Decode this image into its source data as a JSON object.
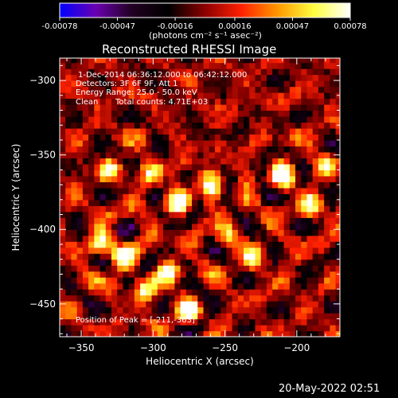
{
  "chart_data": {
    "type": "heatmap",
    "title": "Reconstructed RHESSI Image",
    "xlabel": "Heliocentric X (arcsec)",
    "ylabel": "Heliocentric Y (arcsec)",
    "xlim": [
      -365,
      -170
    ],
    "ylim": [
      -472,
      -285
    ],
    "x_ticks": [
      -350,
      -300,
      -250,
      -200
    ],
    "y_ticks": [
      -300,
      -350,
      -400,
      -450
    ],
    "colorbar": {
      "range": [
        -0.00078,
        0.00078
      ],
      "ticks": [
        "-0.00078",
        "-0.00047",
        "-0.00016",
        "0.00016",
        "0.00047",
        "0.00078"
      ],
      "unit_label": "(photons cm⁻² s⁻¹ asec⁻²)",
      "colormap": [
        "#0000ff",
        "#6a00b0",
        "#200020",
        "#000000",
        "#8c0000",
        "#ff2000",
        "#ff9800",
        "#ffff40",
        "#ffffff"
      ]
    },
    "annotations": [
      "1-Dec-2014 06:36:12.000 to 06:42:12.000",
      "Detectors: 3F 6F 9F, Att 1",
      "Energy Range: 25.0 - 50.0 keV",
      "Clean",
      "Total counts: 4.71E+03"
    ],
    "peak_label": "Position of Peak = [-211,-363]",
    "peak": [
      -211,
      -363
    ],
    "bright_sources": [
      {
        "x": -211,
        "y": -363,
        "value": 0.00078
      },
      {
        "x": -260,
        "y": -370,
        "value": 0.00065
      },
      {
        "x": -282,
        "y": -382,
        "value": 0.0006
      },
      {
        "x": -336,
        "y": -410,
        "value": 0.00062
      },
      {
        "x": -322,
        "y": -418,
        "value": 0.00058
      },
      {
        "x": -290,
        "y": -428,
        "value": 0.00055
      },
      {
        "x": -305,
        "y": -440,
        "value": 0.0005
      },
      {
        "x": -275,
        "y": -455,
        "value": 0.00057
      },
      {
        "x": -190,
        "y": -385,
        "value": 0.0005
      },
      {
        "x": -230,
        "y": -420,
        "value": 0.00045
      },
      {
        "x": -330,
        "y": -360,
        "value": 0.00045
      },
      {
        "x": -300,
        "y": -362,
        "value": 0.00048
      },
      {
        "x": -248,
        "y": -405,
        "value": 0.00045
      },
      {
        "x": -178,
        "y": -355,
        "value": 0.00035
      }
    ]
  },
  "footer": {
    "timestamp": "20-May-2022 02:51"
  }
}
